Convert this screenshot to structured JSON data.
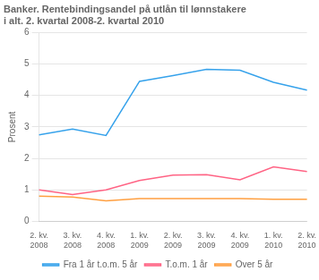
{
  "chart_data": {
    "type": "line",
    "title": "Banker. Rentebindingsandel på utlån til lønnstakere\ni alt. 2. kvartal 2008-2. kvartal 2010",
    "ylabel": "Prosent",
    "categories": [
      "2. kv.\n2008",
      "3. kv.\n2008",
      "4. kv.\n2008",
      "1. kv.\n2009",
      "2. kv.\n2009",
      "3. kv.\n2009",
      "4. kv.\n2009",
      "1. kv.\n2010",
      "2. kv.\n2010"
    ],
    "series": [
      {
        "name": "Fra 1 år t.o.m. 5 år",
        "values": [
          2.75,
          2.93,
          2.73,
          4.45,
          4.63,
          4.83,
          4.8,
          4.42,
          4.17
        ]
      },
      {
        "name": "T.o.m. 1 år",
        "values": [
          1.0,
          0.85,
          1.0,
          1.3,
          1.47,
          1.48,
          1.32,
          1.73,
          1.58
        ]
      },
      {
        "name": "Over 5 år",
        "values": [
          0.8,
          0.77,
          0.65,
          0.72,
          0.72,
          0.72,
          0.72,
          0.7,
          0.7
        ]
      }
    ],
    "ylim": [
      0,
      6
    ],
    "yticks": [
      0,
      1,
      2,
      3,
      4,
      5,
      6
    ],
    "grid": true,
    "legend": "bottom"
  }
}
